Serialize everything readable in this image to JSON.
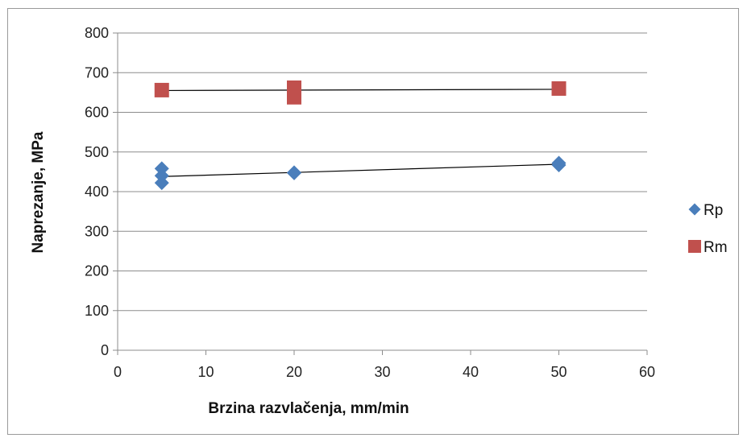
{
  "chart_data": {
    "type": "scatter",
    "xlabel": "Brzina razvlačenja, mm/min",
    "ylabel": "Naprezanje, MPa",
    "xlim": [
      0,
      60
    ],
    "ylim": [
      0,
      800
    ],
    "xticks": [
      0,
      10,
      20,
      30,
      40,
      50,
      60
    ],
    "yticks": [
      0,
      100,
      200,
      300,
      400,
      500,
      600,
      700,
      800
    ],
    "grid": "horizontal",
    "legend_position": "right",
    "series": [
      {
        "name": "Rp",
        "marker": "diamond",
        "color": "#4a7ebb",
        "points": [
          [
            5,
            458
          ],
          [
            5,
            440
          ],
          [
            5,
            422
          ],
          [
            20,
            448
          ],
          [
            20,
            447
          ],
          [
            50,
            472
          ],
          [
            50,
            467
          ]
        ],
        "trendline": [
          [
            5,
            438
          ],
          [
            50,
            469
          ]
        ]
      },
      {
        "name": "Rm",
        "marker": "square",
        "color": "#c0504d",
        "points": [
          [
            5,
            656
          ],
          [
            20,
            662
          ],
          [
            20,
            647
          ],
          [
            20,
            638
          ],
          [
            50,
            660
          ]
        ],
        "trendline": [
          [
            5,
            655
          ],
          [
            50,
            658
          ]
        ]
      }
    ]
  }
}
